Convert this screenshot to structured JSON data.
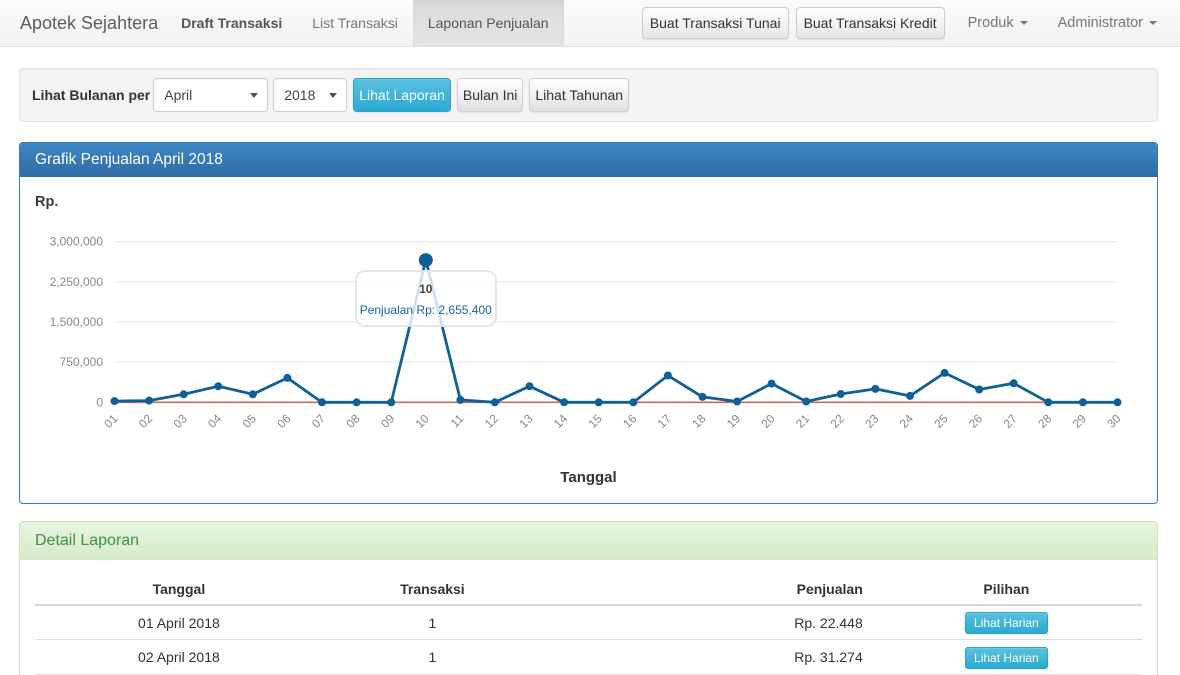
{
  "navbar": {
    "brand": "Apotek Sejahtera",
    "items": [
      {
        "label": "Draft Transaksi"
      },
      {
        "label": "List Transaksi"
      },
      {
        "label": "Laponan Penjualan"
      }
    ],
    "buttons": [
      {
        "label": "Buat Transaksi Tunai"
      },
      {
        "label": "Buat Transaksi Kredit"
      }
    ],
    "dropdowns": [
      {
        "label": "Produk"
      },
      {
        "label": "Administrator"
      }
    ]
  },
  "filter": {
    "label": "Lihat Bulanan per",
    "month_select": {
      "value": "April"
    },
    "year_select": {
      "value": "2018"
    },
    "buttons": [
      {
        "label": "Lihat Laporan",
        "style": "info"
      },
      {
        "label": "Bulan Ini",
        "style": "default"
      },
      {
        "label": "Lihat Tahunan",
        "style": "default"
      }
    ]
  },
  "chart_panel": {
    "title": "Grafik Penjualan April 2018",
    "y_unit_label": "Rp.",
    "x_axis_title": "Tanggal"
  },
  "chart_data": {
    "type": "line",
    "title": "Grafik Penjualan April 2018",
    "xlabel": "Tanggal",
    "ylabel": "Rp.",
    "categories": [
      "01",
      "02",
      "03",
      "04",
      "05",
      "06",
      "07",
      "08",
      "09",
      "10",
      "11",
      "12",
      "13",
      "14",
      "15",
      "16",
      "17",
      "18",
      "19",
      "20",
      "21",
      "22",
      "23",
      "24",
      "25",
      "26",
      "27",
      "28",
      "29",
      "30"
    ],
    "series": [
      {
        "name": "Penjualan",
        "values": [
          22448,
          31274,
          150000,
          300000,
          150000,
          455000,
          0,
          0,
          0,
          2655400,
          45000,
          0,
          300000,
          0,
          0,
          0,
          500000,
          100000,
          15000,
          350000,
          15000,
          155000,
          250000,
          120000,
          550000,
          240000,
          355000,
          0,
          0,
          0
        ]
      }
    ],
    "ylim": [
      0,
      3000000
    ],
    "yticks": [
      0,
      750000,
      1500000,
      2250000,
      3000000
    ],
    "ytick_labels": [
      "0",
      "750,000",
      "1,500,000",
      "2,250,000",
      "3,000,000"
    ],
    "grid": true,
    "line_color": "#0f5f99",
    "grid_color": "#e5e5e5",
    "axis_label_color": "#888888",
    "goal_line": {
      "value": 0,
      "color": "#c96a60"
    },
    "hover": {
      "index": 9,
      "label": "10",
      "value_text": "Penjualan Rp: 2,655,400"
    }
  },
  "detail_panel": {
    "title": "Detail Laporan",
    "table": {
      "headers": [
        "Tanggal",
        "Transaksi",
        "Penjualan",
        "Pilihan"
      ],
      "rows": [
        {
          "tanggal": "01 April 2018",
          "transaksi": "1",
          "penjualan": "Rp. 22.448",
          "action": "Lihat Harian"
        },
        {
          "tanggal": "02 April 2018",
          "transaksi": "1",
          "penjualan": "Rp. 31.274",
          "action": "Lihat Harian"
        }
      ],
      "action_style": "info"
    }
  }
}
